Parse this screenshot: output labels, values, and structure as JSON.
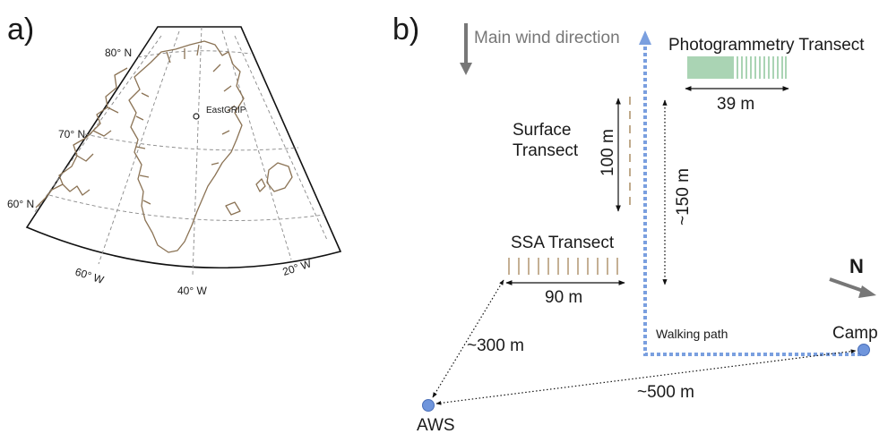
{
  "panel_a": {
    "label": "a)",
    "lat_labels": [
      "80° N",
      "70° N",
      "60° N"
    ],
    "lon_labels": [
      "60° W",
      "40° W",
      "20° W"
    ],
    "site": "EastGRIP"
  },
  "panel_b": {
    "label": "b)",
    "wind": "Main wind direction",
    "north": "N",
    "photogrammetry": {
      "title": "Photogrammetry Transect",
      "length": "39 m"
    },
    "surface": {
      "title_line1": "Surface",
      "title_line2": "Transect",
      "length": "100 m"
    },
    "ssa": {
      "title": "SSA Transect",
      "length": "90 m"
    },
    "path_length": "~150 m",
    "walking_path": "Walking path",
    "camp": "Camp",
    "aws": "AWS",
    "aws_distance": "~300 m",
    "camp_distance": "~500 m",
    "colors": {
      "path": "#7a9fdf",
      "node": "#6f95dc",
      "photogrammetry_ticks": "#55a868",
      "ssa_ticks": "#a6865a",
      "coast": "#8b7355",
      "arrow": "#777777"
    }
  }
}
